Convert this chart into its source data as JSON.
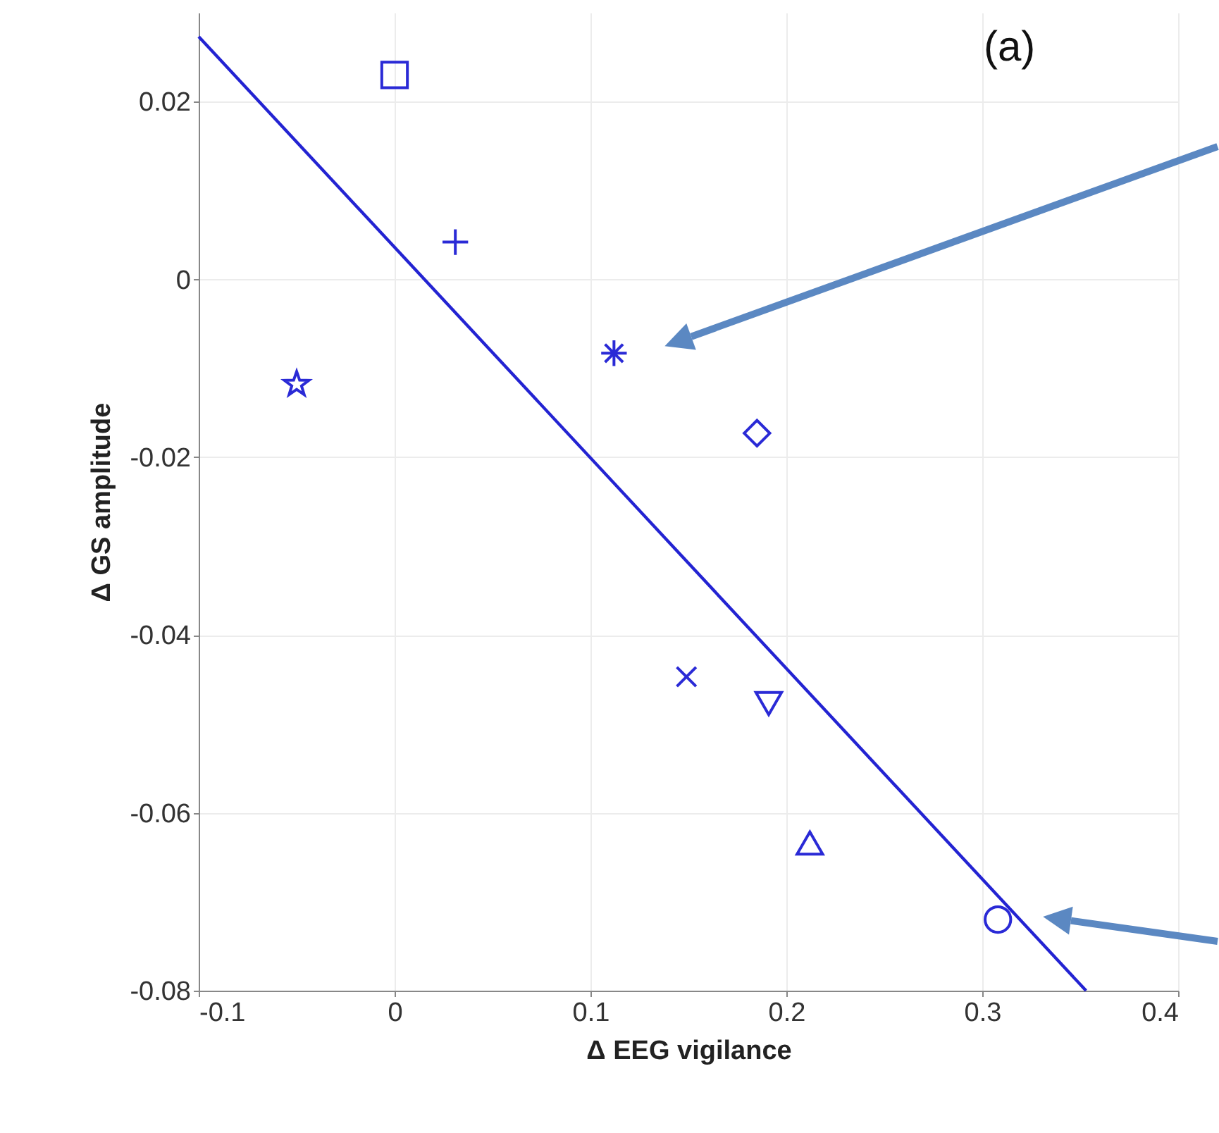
{
  "chart_data": {
    "type": "scatter",
    "xlabel": "Δ EEG vigilance",
    "ylabel": "Δ GS amplitude",
    "xlim": [
      -0.1,
      0.4
    ],
    "xticks": [
      -0.1,
      0,
      0.1,
      0.2,
      0.3,
      0.4
    ],
    "ylim": [
      -0.08,
      0.03
    ],
    "yticks": [
      -0.08,
      -0.06,
      -0.04,
      -0.02,
      0,
      0.02
    ],
    "grid": true,
    "annotations": [
      "(a)"
    ],
    "series": [
      {
        "type": "line",
        "color": "#2323d2",
        "x": [
          -0.1,
          0.353
        ],
        "values": [
          0.0273,
          -0.08
        ],
        "marker": "none",
        "line_style": "solid"
      },
      {
        "color": "#2a2ad6",
        "marker": "square",
        "x": [
          0.0
        ],
        "values": [
          0.023
        ]
      },
      {
        "color": "#2a2ad6",
        "marker": "plus",
        "x": [
          0.031
        ],
        "values": [
          0.0042
        ]
      },
      {
        "color": "#2a2ad6",
        "marker": "star",
        "x": [
          -0.05
        ],
        "values": [
          -0.0118
        ]
      },
      {
        "color": "#2a2ad6",
        "marker": "cross",
        "x": [
          0.112
        ],
        "values": [
          -0.0083
        ]
      },
      {
        "color": "#2a2ad6",
        "marker": "diamond",
        "x": [
          0.185
        ],
        "values": [
          -0.0173
        ]
      },
      {
        "color": "#2a2ad6",
        "marker": "x",
        "x": [
          0.149
        ],
        "values": [
          -0.0447
        ]
      },
      {
        "color": "#2a2ad6",
        "marker": "triangle-down",
        "x": [
          0.191
        ],
        "values": [
          -0.0477
        ]
      },
      {
        "color": "#2a2ad6",
        "marker": "triangle-up",
        "x": [
          0.212
        ],
        "values": [
          -0.0634
        ]
      },
      {
        "color": "#2a2ad6",
        "marker": "circle",
        "x": [
          0.308
        ],
        "values": [
          -0.072
        ]
      }
    ]
  }
}
